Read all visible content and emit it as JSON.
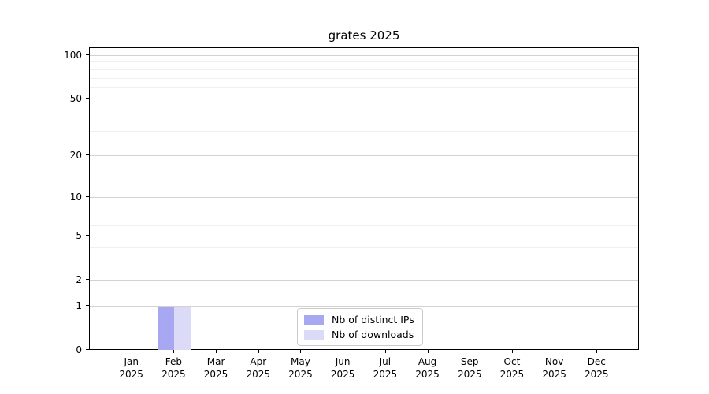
{
  "chart_data": {
    "type": "bar",
    "title": "grates 2025",
    "categories": [
      "Jan 2025",
      "Feb 2025",
      "Mar 2025",
      "Apr 2025",
      "May 2025",
      "Jun 2025",
      "Jul 2025",
      "Aug 2025",
      "Sep 2025",
      "Oct 2025",
      "Nov 2025",
      "Dec 2025"
    ],
    "x_ticks": [
      {
        "line1": "Jan",
        "line2": "2025"
      },
      {
        "line1": "Feb",
        "line2": "2025"
      },
      {
        "line1": "Mar",
        "line2": "2025"
      },
      {
        "line1": "Apr",
        "line2": "2025"
      },
      {
        "line1": "May",
        "line2": "2025"
      },
      {
        "line1": "Jun",
        "line2": "2025"
      },
      {
        "line1": "Jul",
        "line2": "2025"
      },
      {
        "line1": "Aug",
        "line2": "2025"
      },
      {
        "line1": "Sep",
        "line2": "2025"
      },
      {
        "line1": "Oct",
        "line2": "2025"
      },
      {
        "line1": "Nov",
        "line2": "2025"
      },
      {
        "line1": "Dec",
        "line2": "2025"
      }
    ],
    "series": [
      {
        "name": "Nb of distinct IPs",
        "color": "#a8a8f2",
        "values": [
          0,
          1,
          0,
          0,
          0,
          0,
          0,
          0,
          0,
          0,
          0,
          0
        ]
      },
      {
        "name": "Nb of downloads",
        "color": "#dbdbf8",
        "values": [
          0,
          1,
          0,
          0,
          0,
          0,
          0,
          0,
          0,
          0,
          0,
          0
        ]
      }
    ],
    "y_axis": {
      "scale": "log1p",
      "lim": [
        0,
        100
      ],
      "major_ticks": [
        0,
        1,
        2,
        5,
        10,
        20,
        50,
        100
      ],
      "minor_gridlines": [
        3,
        4,
        6,
        7,
        8,
        9,
        30,
        40,
        60,
        70,
        80,
        90
      ]
    },
    "grid": true,
    "legend_position": "bottom-center"
  },
  "colors": {
    "background": "#ffffff",
    "axis": "#000000",
    "grid_major": "#d2d2d2",
    "grid_minor": "#efefef",
    "text": "#000000",
    "legend_border": "#cccccc",
    "series_1": "#a8a8f2",
    "series_2": "#dbdbf8"
  }
}
